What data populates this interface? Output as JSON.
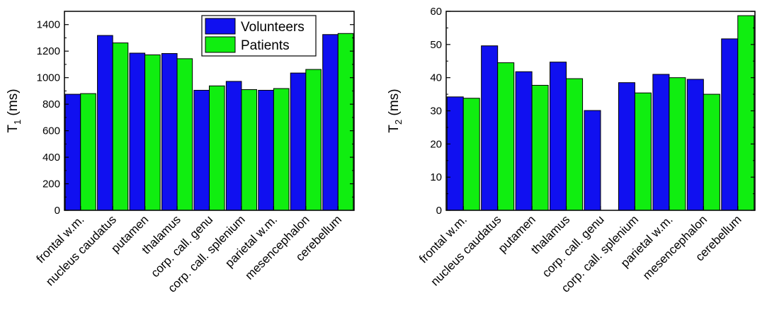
{
  "colors": {
    "volunteers": "#1010f0",
    "patients": "#10ee10",
    "axis": "#000000"
  },
  "chart_data": [
    {
      "type": "bar",
      "title": "",
      "xlabel": "",
      "ylabel_main": "T",
      "ylabel_sub": "1",
      "ylabel_unit": " (ms)",
      "ylim": [
        0,
        1500
      ],
      "yticks": [
        0,
        200,
        400,
        600,
        800,
        1000,
        1200,
        1400
      ],
      "categories": [
        "frontal w.m.",
        "nucleus caudatus",
        "putamen",
        "thalamus",
        "corp. call. genu",
        "corp. call. splenium",
        "parietal w.m.",
        "mesencephalon",
        "cerebellum"
      ],
      "legend_position": "top-right",
      "series": [
        {
          "name": "Volunteers",
          "color_key": "volunteers",
          "values": [
            875,
            1318,
            1185,
            1182,
            905,
            972,
            905,
            1035,
            1325
          ]
        },
        {
          "name": "Patients",
          "color_key": "patients",
          "values": [
            880,
            1262,
            1172,
            1143,
            938,
            910,
            918,
            1062,
            1333
          ]
        }
      ]
    },
    {
      "type": "bar",
      "title": "",
      "xlabel": "",
      "ylabel_main": "T",
      "ylabel_sub": "2",
      "ylabel_unit": " (ms)",
      "ylim": [
        0,
        60
      ],
      "yticks": [
        0,
        10,
        20,
        30,
        40,
        50,
        60
      ],
      "categories": [
        "frontal w.m.",
        "nucleus caudatus",
        "putamen",
        "thalamus",
        "corp. call. genu",
        "corp. call. splenium",
        "parietal w.m.",
        "mesencephalon",
        "cerebellum"
      ],
      "legend_position": "none",
      "series": [
        {
          "name": "Volunteers",
          "color_key": "volunteers",
          "values": [
            34.2,
            49.6,
            41.8,
            44.7,
            30.1,
            38.5,
            41.0,
            39.5,
            51.7
          ]
        },
        {
          "name": "Patients",
          "color_key": "patients",
          "values": [
            33.8,
            44.5,
            37.7,
            39.7,
            null,
            35.4,
            40.0,
            35.0,
            58.7
          ]
        }
      ]
    }
  ]
}
